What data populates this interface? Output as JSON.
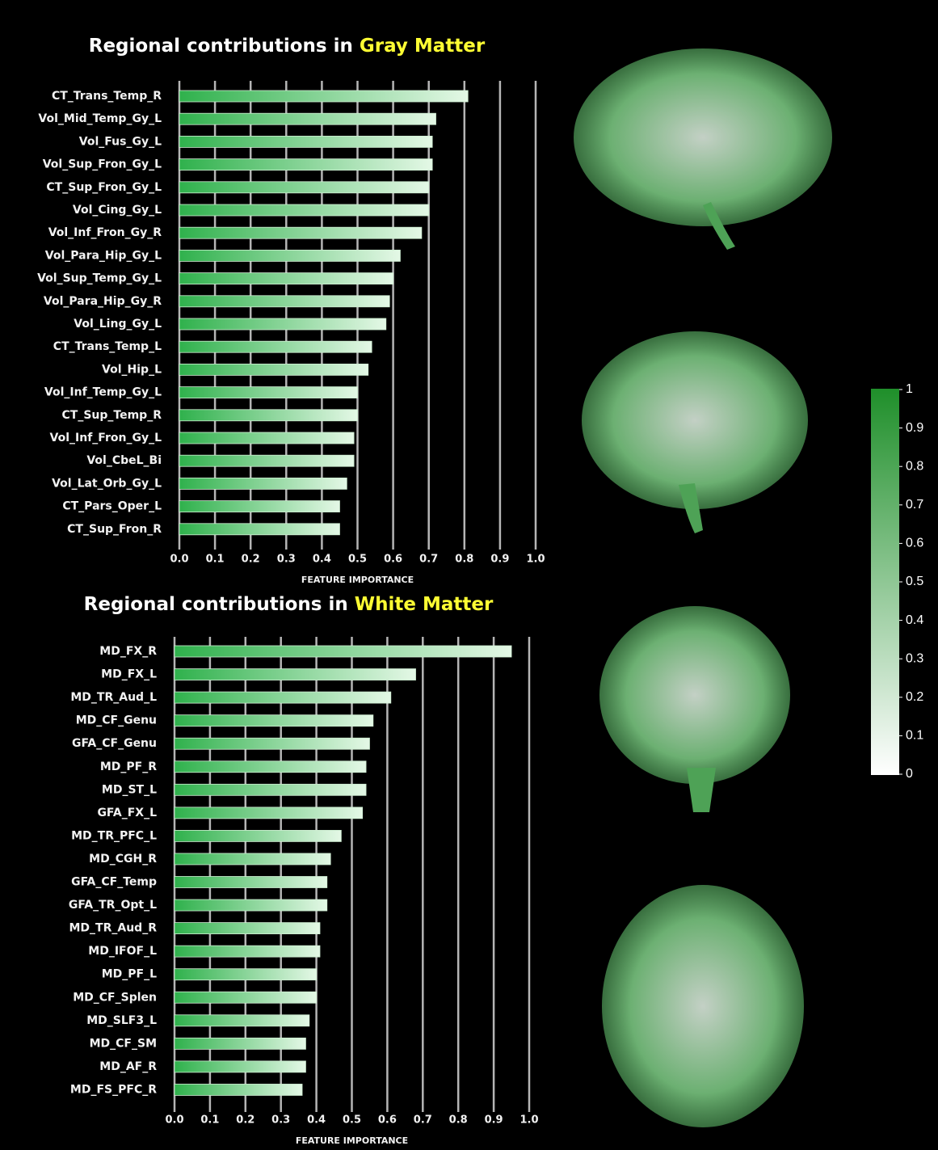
{
  "chart_data": [
    {
      "type": "bar",
      "orientation": "horizontal",
      "title": "Regional contributions in",
      "title_highlight": "Gray Matter",
      "highlight_color": "#ffff33",
      "xlabel": "FEATURE IMPORTANCE",
      "color": "#2fb14c",
      "categories": [
        "CT_Trans_Temp_R",
        "Vol_Mid_Temp_Gy_L",
        "Vol_Fus_Gy_L",
        "Vol_Sup_Fron_Gy_L",
        "CT_Sup_Fron_Gy_L",
        "Vol_Cing_Gy_L",
        "Vol_Inf_Fron_Gy_R",
        "Vol_Para_Hip_Gy_L",
        "Vol_Sup_Temp_Gy_L",
        "Vol_Para_Hip_Gy_R",
        "Vol_Ling_Gy_L",
        "CT_Trans_Temp_L",
        "Vol_Hip_L",
        "Vol_Inf_Temp_Gy_L",
        "CT_Sup_Temp_R",
        "Vol_Inf_Fron_Gy_L",
        "Vol_CbeL_Bi",
        "Vol_Lat_Orb_Gy_L",
        "CT_Pars_Oper_L",
        "CT_Sup_Fron_R"
      ],
      "values": [
        0.81,
        0.72,
        0.71,
        0.71,
        0.7,
        0.7,
        0.68,
        0.62,
        0.6,
        0.59,
        0.58,
        0.54,
        0.53,
        0.5,
        0.5,
        0.49,
        0.49,
        0.47,
        0.45,
        0.45
      ],
      "xlim": [
        0,
        1
      ],
      "xticks": [
        {
          "value": 0,
          "label": "0.0"
        },
        0.1,
        0.2,
        0.3,
        0.4,
        0.5,
        0.6,
        0.7,
        0.8,
        0.9,
        {
          "value": 1,
          "label": "1.0"
        }
      ],
      "grid": true
    },
    {
      "type": "bar",
      "orientation": "horizontal",
      "title": "Regional contributions in",
      "title_highlight": "White Matter",
      "highlight_color": "#ffff33",
      "xlabel": "FEATURE IMPORTANCE",
      "color": "#2fb14c",
      "categories": [
        "MD_FX_R",
        "MD_FX_L",
        "MD_TR_Aud_L",
        "MD_CF_Genu",
        "GFA_CF_Genu",
        "MD_PF_R",
        "MD_ST_L",
        "GFA_FX_L",
        "MD_TR_PFC_L",
        "MD_CGH_R",
        "GFA_CF_Temp",
        "GFA_TR_Opt_L",
        "MD_TR_Aud_R",
        "MD_IFOF_L",
        "MD_PF_L",
        "MD_CF_Splen",
        "MD_SLF3_L",
        "MD_CF_SM",
        "MD_AF_R",
        "MD_FS_PFC_R"
      ],
      "values": [
        0.95,
        0.68,
        0.61,
        0.56,
        0.55,
        0.54,
        0.54,
        0.53,
        0.47,
        0.44,
        0.43,
        0.43,
        0.41,
        0.41,
        0.4,
        0.4,
        0.38,
        0.37,
        0.37,
        0.36
      ],
      "xlim": [
        0,
        1
      ],
      "xticks": [
        {
          "value": 0,
          "label": "0.0"
        },
        0.1,
        0.2,
        0.3,
        0.4,
        0.5,
        0.6,
        0.7,
        0.8,
        0.9,
        {
          "value": 1,
          "label": "1.0"
        }
      ],
      "grid": true
    }
  ],
  "colorbar": {
    "ylim": [
      0,
      1
    ],
    "yticks": [
      0,
      0.1,
      0.2,
      0.3,
      0.4,
      0.5,
      0.6,
      0.7,
      0.8,
      0.9,
      1
    ],
    "colors": [
      "#ffffff",
      "#1f8f2a"
    ]
  }
}
